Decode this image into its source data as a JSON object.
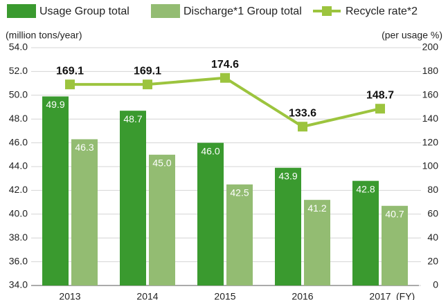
{
  "chart_data": {
    "type": "bar",
    "categories": [
      "2013",
      "2014",
      "2015",
      "2016",
      "2017"
    ],
    "series": [
      {
        "name": "Usage Group total",
        "color": "#3a9a2f",
        "values": [
          49.9,
          48.7,
          46.0,
          43.9,
          42.8
        ],
        "value_labels": [
          "49.9",
          "48.7",
          "46.0",
          "43.9",
          "42.8"
        ]
      },
      {
        "name": "Discharge*1 Group total",
        "color": "#93bc72",
        "values": [
          46.3,
          45.0,
          42.5,
          41.2,
          40.7
        ],
        "value_labels": [
          "46.3",
          "45.0",
          "42.5",
          "41.2",
          "40.7"
        ]
      },
      {
        "name": "Recycle rate*2",
        "type": "line",
        "axis": "y2",
        "color": "#9cc43e",
        "values": [
          169.1,
          169.1,
          174.6,
          133.6,
          148.7
        ]
      }
    ],
    "y_label": "(million tons/year)",
    "y2_label": "(per usage %)",
    "x_label": "(FY)",
    "ylim": [
      34,
      54
    ],
    "yticks": [
      {
        "value": 34,
        "label": "34.0"
      },
      {
        "value": 36,
        "label": "36.0"
      },
      {
        "value": 38,
        "label": "38.0"
      },
      {
        "value": 40,
        "label": "40.0"
      },
      {
        "value": 42,
        "label": "42.0"
      },
      {
        "value": 44,
        "label": "44.0"
      },
      {
        "value": 46,
        "label": "46.0"
      },
      {
        "value": 48,
        "label": "48.0"
      },
      {
        "value": 50,
        "label": "50.0"
      },
      {
        "value": 52,
        "label": "52.0"
      },
      {
        "value": 54,
        "label": "54.0"
      }
    ],
    "y2lim": [
      0,
      200
    ],
    "y2ticks": [
      0,
      20,
      40,
      60,
      80,
      100,
      120,
      140,
      160,
      180,
      200
    ],
    "grid": true,
    "legend": "top"
  }
}
